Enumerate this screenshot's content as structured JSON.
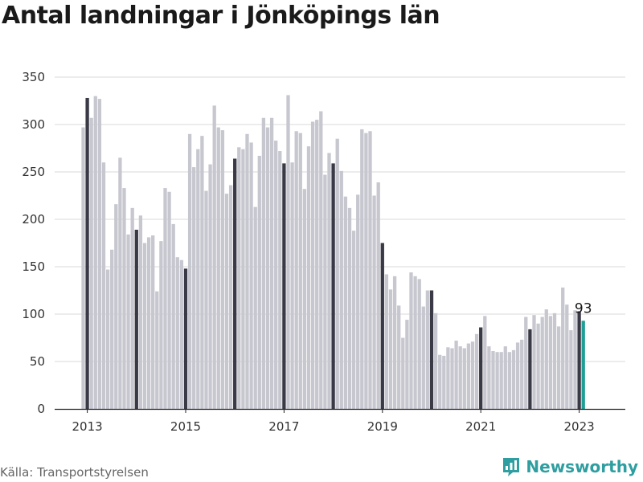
{
  "title": "Antal landningar i Jönköpings län",
  "source": "Källa: Transportstyrelsen",
  "brand": "Newsworthy",
  "colors": {
    "default": "#c7c7d0",
    "january": "#3a3a46",
    "latest": "#1e9e95",
    "grid": "#d9d9d9",
    "brand": "#2f9ea0"
  },
  "chart_data": {
    "type": "bar",
    "title": "Antal landningar i Jönköpings län",
    "xlabel": "",
    "ylabel": "",
    "ylim": [
      0,
      350
    ],
    "yticks": [
      0,
      50,
      100,
      150,
      200,
      250,
      300,
      350
    ],
    "xticks": [
      "2013",
      "2015",
      "2017",
      "2019",
      "2021",
      "2023"
    ],
    "grid": true,
    "start": "2012-12",
    "highlight": "January bars dark; latest month teal",
    "annotation": {
      "month": "2023-02",
      "text": "93"
    },
    "categories": [
      "2012-12",
      "2013-01",
      "2013-02",
      "2013-03",
      "2013-04",
      "2013-05",
      "2013-06",
      "2013-07",
      "2013-08",
      "2013-09",
      "2013-10",
      "2013-11",
      "2013-12",
      "2014-01",
      "2014-02",
      "2014-03",
      "2014-04",
      "2014-05",
      "2014-06",
      "2014-07",
      "2014-08",
      "2014-09",
      "2014-10",
      "2014-11",
      "2014-12",
      "2015-01",
      "2015-02",
      "2015-03",
      "2015-04",
      "2015-05",
      "2015-06",
      "2015-07",
      "2015-08",
      "2015-09",
      "2015-10",
      "2015-11",
      "2015-12",
      "2016-01",
      "2016-02",
      "2016-03",
      "2016-04",
      "2016-05",
      "2016-06",
      "2016-07",
      "2016-08",
      "2016-09",
      "2016-10",
      "2016-11",
      "2016-12",
      "2017-01",
      "2017-02",
      "2017-03",
      "2017-04",
      "2017-05",
      "2017-06",
      "2017-07",
      "2017-08",
      "2017-09",
      "2017-10",
      "2017-11",
      "2017-12",
      "2018-01",
      "2018-02",
      "2018-03",
      "2018-04",
      "2018-05",
      "2018-06",
      "2018-07",
      "2018-08",
      "2018-09",
      "2018-10",
      "2018-11",
      "2018-12",
      "2019-01",
      "2019-02",
      "2019-03",
      "2019-04",
      "2019-05",
      "2019-06",
      "2019-07",
      "2019-08",
      "2019-09",
      "2019-10",
      "2019-11",
      "2019-12",
      "2020-01",
      "2020-02",
      "2020-03",
      "2020-04",
      "2020-05",
      "2020-06",
      "2020-07",
      "2020-08",
      "2020-09",
      "2020-10",
      "2020-11",
      "2020-12",
      "2021-01",
      "2021-02",
      "2021-03",
      "2021-04",
      "2021-05",
      "2021-06",
      "2021-07",
      "2021-08",
      "2021-09",
      "2021-10",
      "2021-11",
      "2021-12",
      "2022-01",
      "2022-02",
      "2022-03",
      "2022-04",
      "2022-05",
      "2022-06",
      "2022-07",
      "2022-08",
      "2022-09",
      "2022-10",
      "2022-11",
      "2022-12",
      "2023-01",
      "2023-02"
    ],
    "values": [
      297,
      328,
      307,
      330,
      327,
      260,
      147,
      168,
      216,
      265,
      233,
      184,
      212,
      189,
      204,
      175,
      181,
      183,
      124,
      177,
      233,
      229,
      195,
      160,
      157,
      148,
      290,
      255,
      274,
      288,
      230,
      258,
      320,
      297,
      294,
      227,
      236,
      264,
      276,
      274,
      290,
      281,
      213,
      267,
      307,
      297,
      307,
      283,
      272,
      259,
      331,
      260,
      293,
      291,
      232,
      277,
      303,
      305,
      314,
      247,
      270,
      259,
      285,
      251,
      224,
      212,
      188,
      226,
      295,
      291,
      293,
      225,
      239,
      175,
      142,
      126,
      140,
      109,
      75,
      94,
      144,
      140,
      137,
      108,
      125,
      125,
      101,
      57,
      56,
      65,
      64,
      72,
      66,
      64,
      69,
      71,
      79,
      86,
      98,
      66,
      61,
      60,
      60,
      66,
      60,
      62,
      70,
      73,
      97,
      84,
      99,
      90,
      97,
      105,
      98,
      101,
      87,
      128,
      110,
      83,
      104,
      103,
      93
    ]
  }
}
